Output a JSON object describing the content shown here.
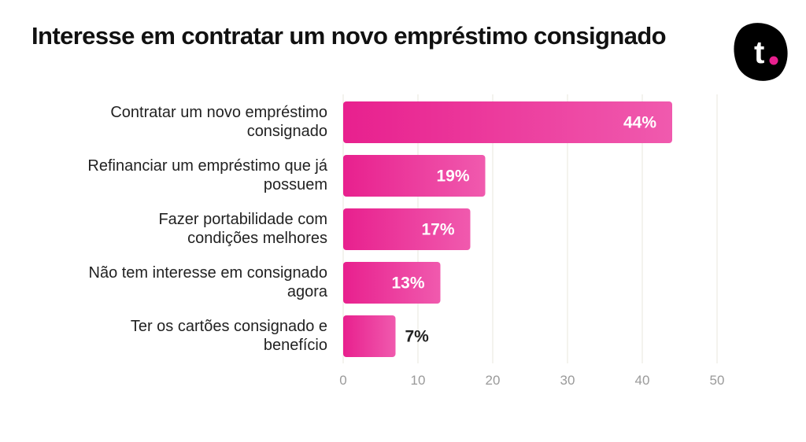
{
  "header": {
    "title": "Interesse em contratar um novo empréstimo consignado",
    "logo_letter": "t"
  },
  "colors": {
    "bar_start": "#e8208e",
    "bar_end": "#f05aae",
    "grid": "#e9e7dc",
    "axis_text": "#9a9a9a",
    "label_text": "#222222",
    "logo_bg": "#000000",
    "logo_dot": "#e8208e"
  },
  "chart_data": {
    "type": "bar",
    "orientation": "horizontal",
    "title": "Interesse em contratar um novo empréstimo consignado",
    "categories": [
      [
        "Contratar um novo empréstimo",
        "consignado"
      ],
      [
        "Refinanciar um empréstimo que já",
        "possuem"
      ],
      [
        "Fazer portabilidade com",
        "condições melhores"
      ],
      [
        "Não tem interesse em consignado",
        "agora"
      ],
      [
        "Ter os cartões consignado e",
        "benefício"
      ]
    ],
    "values": [
      44,
      19,
      17,
      13,
      7
    ],
    "data_labels": [
      "44%",
      "19%",
      "17%",
      "13%",
      "7%"
    ],
    "xlim": [
      0,
      50
    ],
    "xticks": [
      0,
      10,
      20,
      30,
      40,
      50
    ],
    "grid": true,
    "legend": "none"
  }
}
